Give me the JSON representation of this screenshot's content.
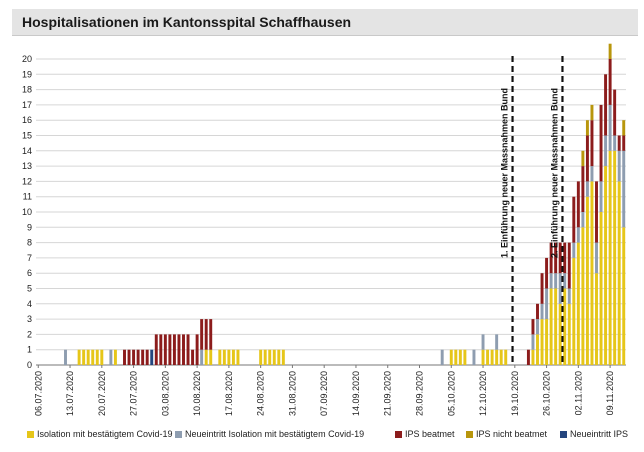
{
  "title": "Hospitalisationen im Kantonsspital Schaffhausen",
  "chart_data": {
    "type": "bar",
    "stacked": true,
    "title": "Hospitalisationen im Kantonsspital Schaffhausen",
    "ylim": [
      0,
      20
    ],
    "yticks": [
      "0",
      "1",
      "2",
      "3",
      "4",
      "5",
      "6",
      "7",
      "8",
      "9",
      "10",
      "11",
      "12",
      "13",
      "14",
      "15",
      "16",
      "17",
      "18",
      "19",
      "20"
    ],
    "grid": true,
    "legend_position": "bottom",
    "xticks": [
      "06.07.2020",
      "13.07.2020",
      "20.07.2020",
      "27.07.2020",
      "03.08.2020",
      "10.08.2020",
      "17.08.2020",
      "24.08.2020",
      "31.08.2020",
      "07.09.2020",
      "14.09.2020",
      "21.09.2020",
      "28.09.2020",
      "05.10.2020",
      "12.10.2020",
      "19.10.2020",
      "26.10.2020",
      "02.11.2020",
      "09.11.2020"
    ],
    "annotations": [
      {
        "text": "1. Einführung neuer Massnahmen Bund",
        "x_day": 105
      },
      {
        "text": "2. Einführung neuer Massnahmen Bund",
        "x_day": 116
      }
    ],
    "series": [
      {
        "name": "Isolation mit bestätigtem Covid-19",
        "color": "#e6c619",
        "values": [
          0,
          0,
          0,
          0,
          0,
          0,
          0,
          0,
          0,
          1,
          1,
          1,
          1,
          1,
          1,
          0,
          0,
          1,
          0,
          0,
          0,
          0,
          0,
          0,
          0,
          0,
          0,
          0,
          0,
          0,
          0,
          0,
          0,
          0,
          0,
          0,
          0,
          1,
          1,
          0,
          1,
          1,
          1,
          1,
          1,
          0,
          0,
          0,
          0,
          1,
          1,
          1,
          1,
          1,
          1,
          0,
          0,
          0,
          0,
          0,
          0,
          0,
          0,
          0,
          0,
          0,
          0,
          0,
          0,
          0,
          0,
          0,
          0,
          0,
          0,
          0,
          0,
          0,
          0,
          0,
          0,
          0,
          0,
          0,
          0,
          0,
          0,
          0,
          0,
          0,
          0,
          1,
          1,
          1,
          1,
          0,
          0,
          0,
          1,
          1,
          1,
          1,
          1,
          1,
          0,
          0,
          0,
          0,
          0,
          1,
          2,
          3,
          3,
          5,
          5,
          4,
          5,
          4,
          7,
          8,
          9,
          11,
          12,
          6,
          10,
          13,
          14,
          14,
          12,
          9
        ]
      },
      {
        "name": "Neueintritt Isolation mit bestätigtem Covid-19",
        "color": "#8e9db0",
        "values": [
          0,
          0,
          0,
          0,
          0,
          0,
          1,
          0,
          0,
          0,
          0,
          0,
          0,
          0,
          0,
          0,
          1,
          0,
          0,
          0,
          0,
          0,
          0,
          0,
          0,
          0,
          0,
          0,
          0,
          0,
          0,
          0,
          0,
          0,
          0,
          0,
          1,
          0,
          0,
          0,
          0,
          0,
          0,
          0,
          0,
          0,
          0,
          0,
          0,
          0,
          0,
          0,
          0,
          0,
          0,
          0,
          0,
          0,
          0,
          0,
          0,
          0,
          0,
          0,
          0,
          0,
          0,
          0,
          0,
          0,
          0,
          0,
          0,
          0,
          0,
          0,
          0,
          0,
          0,
          0,
          0,
          0,
          0,
          0,
          0,
          0,
          0,
          0,
          0,
          1,
          0,
          0,
          0,
          0,
          0,
          0,
          1,
          0,
          1,
          0,
          0,
          1,
          0,
          0,
          0,
          0,
          0,
          0,
          0,
          1,
          1,
          1,
          2,
          1,
          1,
          2,
          1,
          1,
          1,
          1,
          1,
          1,
          1,
          2,
          2,
          2,
          3,
          1,
          2,
          5
        ]
      },
      {
        "name": "IPS beatmet",
        "color": "#8c1c1c",
        "values": [
          0,
          0,
          0,
          0,
          0,
          0,
          0,
          0,
          0,
          0,
          0,
          0,
          0,
          0,
          0,
          0,
          0,
          0,
          0,
          1,
          1,
          1,
          1,
          1,
          1,
          0,
          2,
          2,
          2,
          2,
          2,
          2,
          2,
          2,
          1,
          2,
          2,
          2,
          2,
          0,
          0,
          0,
          0,
          0,
          0,
          0,
          0,
          0,
          0,
          0,
          0,
          0,
          0,
          0,
          0,
          0,
          0,
          0,
          0,
          0,
          0,
          0,
          0,
          0,
          0,
          0,
          0,
          0,
          0,
          0,
          0,
          0,
          0,
          0,
          0,
          0,
          0,
          0,
          0,
          0,
          0,
          0,
          0,
          0,
          0,
          0,
          0,
          0,
          0,
          0,
          0,
          0,
          0,
          0,
          0,
          0,
          0,
          0,
          0,
          0,
          0,
          0,
          0,
          0,
          0,
          0,
          0,
          0,
          1,
          1,
          1,
          2,
          2,
          2,
          2,
          2,
          2,
          3,
          3,
          3,
          3,
          3,
          3,
          4,
          5,
          4,
          3,
          3,
          1,
          1
        ]
      },
      {
        "name": "IPS nicht beatmet",
        "color": "#b8960c",
        "values": [
          0,
          0,
          0,
          0,
          0,
          0,
          0,
          0,
          0,
          0,
          0,
          0,
          0,
          0,
          0,
          0,
          0,
          0,
          0,
          0,
          0,
          0,
          0,
          0,
          0,
          0,
          0,
          0,
          0,
          0,
          0,
          0,
          0,
          0,
          0,
          0,
          0,
          0,
          0,
          0,
          0,
          0,
          0,
          0,
          0,
          0,
          0,
          0,
          0,
          0,
          0,
          0,
          0,
          0,
          0,
          0,
          0,
          0,
          0,
          0,
          0,
          0,
          0,
          0,
          0,
          0,
          0,
          0,
          0,
          0,
          0,
          0,
          0,
          0,
          0,
          0,
          0,
          0,
          0,
          0,
          0,
          0,
          0,
          0,
          0,
          0,
          0,
          0,
          0,
          0,
          0,
          0,
          0,
          0,
          0,
          0,
          0,
          0,
          0,
          0,
          0,
          0,
          0,
          0,
          0,
          0,
          0,
          0,
          0,
          0,
          0,
          0,
          0,
          0,
          0,
          0,
          0,
          0,
          0,
          0,
          1,
          1,
          1,
          0,
          0,
          0,
          1,
          0,
          0,
          1
        ]
      },
      {
        "name": "Neueintritt IPS",
        "color": "#24457e",
        "values": [
          0,
          0,
          0,
          0,
          0,
          0,
          0,
          0,
          0,
          0,
          0,
          0,
          0,
          0,
          0,
          0,
          0,
          0,
          0,
          0,
          0,
          0,
          0,
          0,
          0,
          1,
          0,
          0,
          0,
          0,
          0,
          0,
          0,
          0,
          0,
          0,
          0,
          0,
          0,
          0,
          0,
          0,
          0,
          0,
          0,
          0,
          0,
          0,
          0,
          0,
          0,
          0,
          0,
          0,
          0,
          0,
          0,
          0,
          0,
          0,
          0,
          0,
          0,
          0,
          0,
          0,
          0,
          0,
          0,
          0,
          0,
          0,
          0,
          0,
          0,
          0,
          0,
          0,
          0,
          0,
          0,
          0,
          0,
          0,
          0,
          0,
          0,
          0,
          0,
          0,
          0,
          0,
          0,
          0,
          0,
          0,
          0,
          0,
          0,
          0,
          0,
          0,
          0,
          0,
          0,
          0,
          0,
          0,
          0,
          0,
          0,
          0,
          0,
          0,
          0,
          0,
          0,
          0,
          0,
          0,
          0,
          0,
          0,
          0,
          0,
          0,
          0,
          0,
          0,
          0
        ]
      }
    ]
  }
}
